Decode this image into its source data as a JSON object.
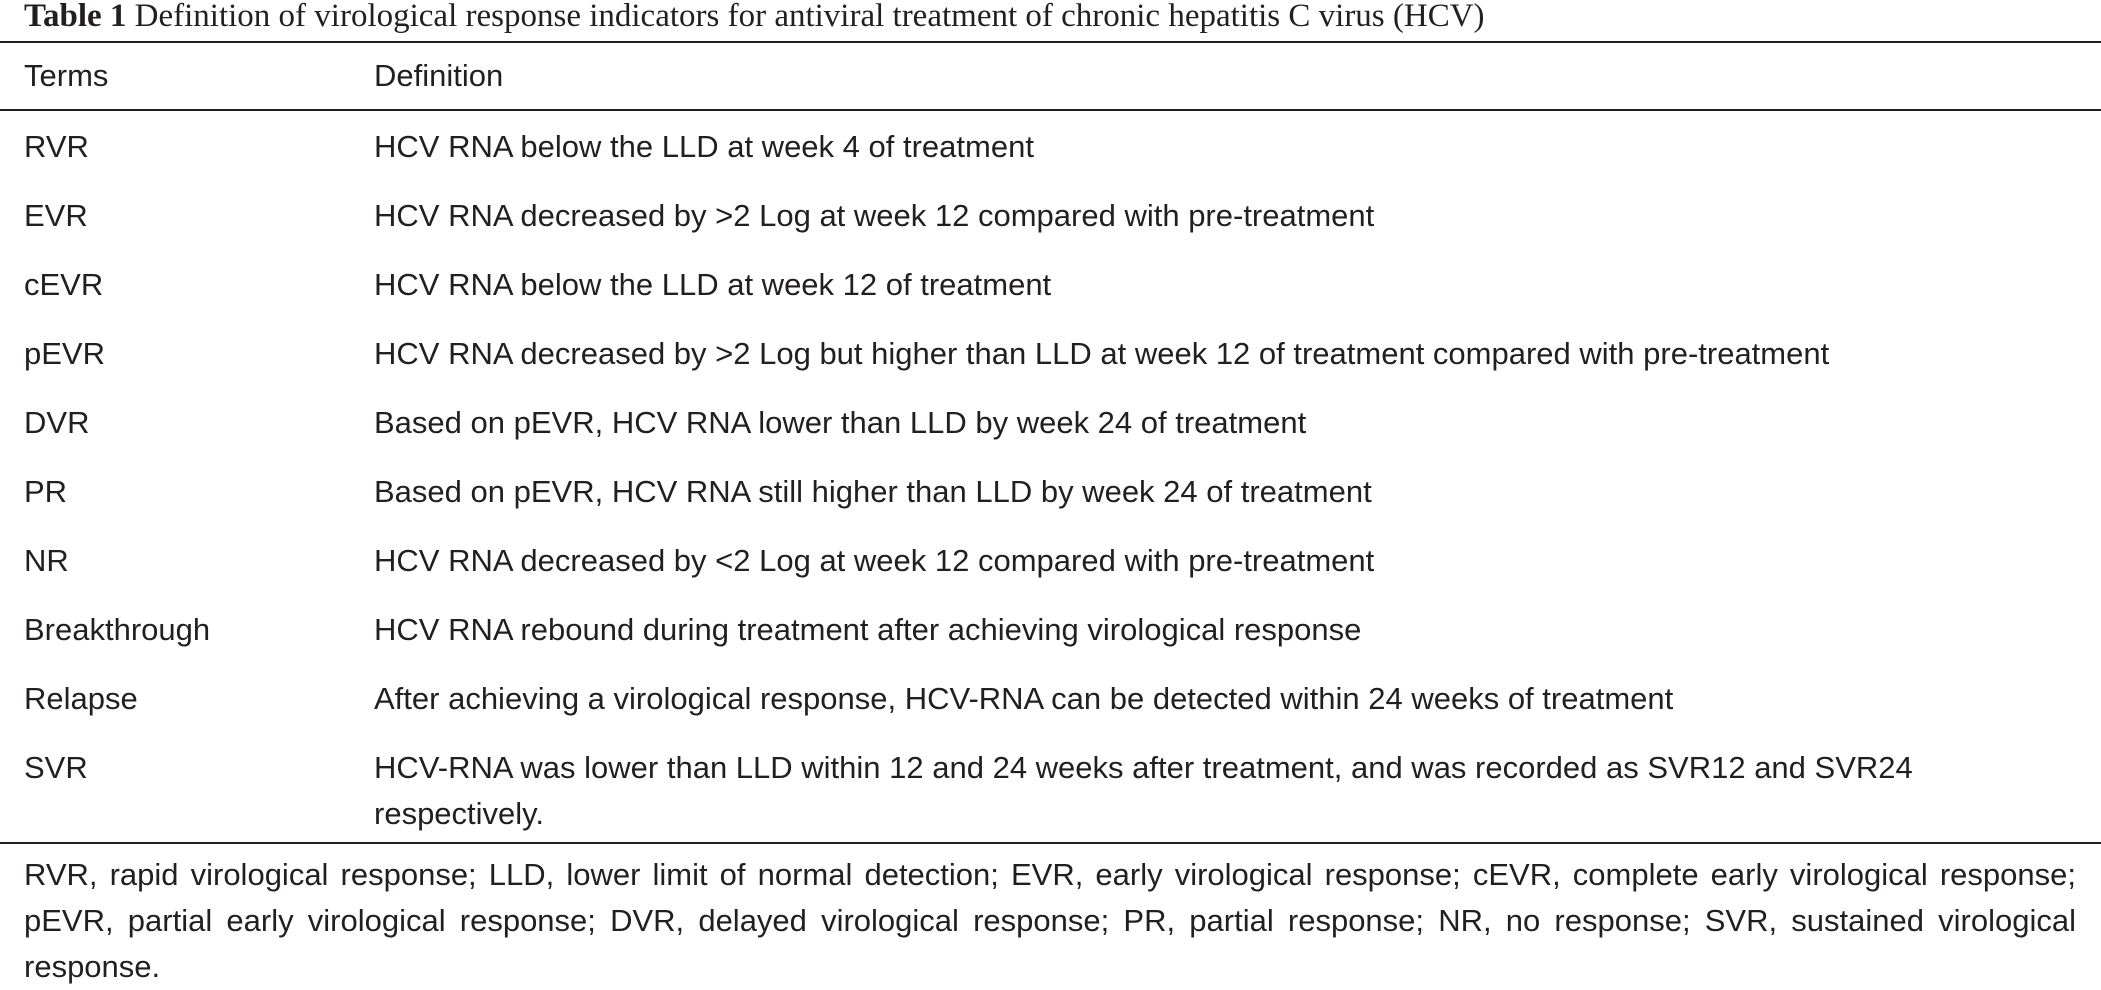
{
  "table": {
    "caption_label": "Table 1",
    "caption_text": "Definition of virological response indicators for antiviral treatment of chronic hepatitis C virus (HCV)",
    "headers": [
      "Terms",
      "Definition"
    ],
    "rows": [
      {
        "term": "RVR",
        "definition": "HCV RNA below the LLD at week 4 of treatment"
      },
      {
        "term": "EVR",
        "definition": "HCV RNA decreased by >2 Log at week 12 compared with pre-treatment"
      },
      {
        "term": "cEVR",
        "definition": "HCV RNA below the LLD at week 12 of treatment"
      },
      {
        "term": "pEVR",
        "definition": "HCV RNA decreased by >2 Log but higher than LLD at week 12 of treatment compared with pre-treatment"
      },
      {
        "term": "DVR",
        "definition": "Based on pEVR, HCV RNA lower than LLD by week 24 of treatment"
      },
      {
        "term": "PR",
        "definition": "Based on pEVR, HCV RNA still higher than LLD by week 24 of treatment"
      },
      {
        "term": "NR",
        "definition": "HCV RNA decreased by <2 Log at week 12 compared with pre-treatment"
      },
      {
        "term": "Breakthrough",
        "definition": "HCV RNA rebound during treatment after achieving virological response"
      },
      {
        "term": "Relapse",
        "definition": "After achieving a virological response, HCV-RNA can be detected within 24 weeks of treatment"
      },
      {
        "term": "SVR",
        "definition": "HCV-RNA was lower than LLD within 12 and 24 weeks after treatment, and was recorded as SVR12 and SVR24 respectively."
      }
    ],
    "footnote": "RVR, rapid virological response; LLD, lower limit of normal detection; EVR, early virological response; cEVR, complete early virological response; pEVR, partial early virological response; DVR, delayed virological response; PR, partial response; NR, no response; SVR, sustained virological response."
  }
}
